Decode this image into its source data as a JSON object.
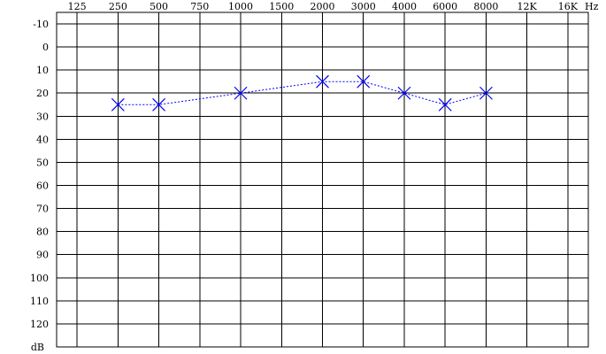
{
  "chart_data": {
    "type": "line",
    "title": "",
    "xlabel": "",
    "ylabel": "",
    "x_tick_labels": [
      "125",
      "250",
      "500",
      "750",
      "1000",
      "1500",
      "2000",
      "3000",
      "4000",
      "6000",
      "8000",
      "12K",
      "16K"
    ],
    "x_unit_label": "Hz",
    "y_tick_labels": [
      "-10",
      "0",
      "10",
      "20",
      "30",
      "40",
      "50",
      "60",
      "70",
      "80",
      "90",
      "100",
      "110",
      "120"
    ],
    "y_unit_label": "dB",
    "ylim": [
      -15,
      130
    ],
    "y_inverted": true,
    "grid": true,
    "series": [
      {
        "marker": "x",
        "line_style": "dashed",
        "color": "#0000ff",
        "x": [
          "250",
          "500",
          "1000",
          "2000",
          "3000",
          "4000",
          "6000",
          "8000"
        ],
        "values": [
          25,
          25,
          20,
          15,
          15,
          20,
          25,
          20
        ]
      }
    ]
  }
}
